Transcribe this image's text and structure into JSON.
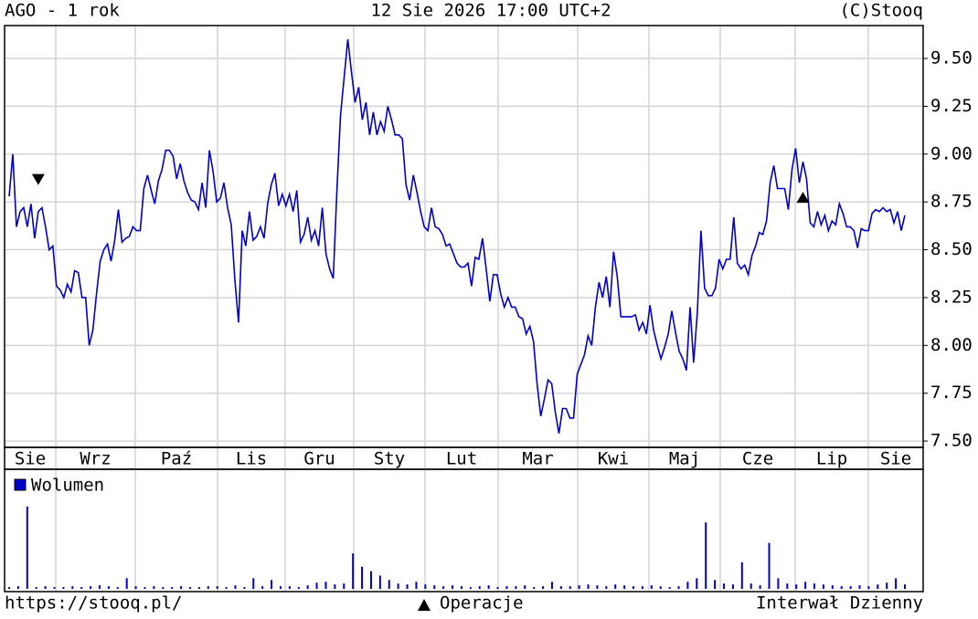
{
  "chart_data": [
    {
      "type": "line",
      "title": "AGO - 1 rok",
      "subtitle": "12 Sie 2026 17:00 UTC+2",
      "source": "(C)Stooq",
      "footer_left": "https://stooq.pl/",
      "operations_label": "Operacje",
      "footer_right": "Interwał Dzienny",
      "color": "#0000cc",
      "grid": true,
      "months": [
        "Sie",
        "Wrz",
        "Paź",
        "Lis",
        "Gru",
        "Sty",
        "Lut",
        "Mar",
        "Kwi",
        "Maj",
        "Cze",
        "Lip",
        "Sie"
      ],
      "ylim": [
        7.467,
        9.672
      ],
      "yticks": [
        {
          "value": 7.5,
          "label": "7.50"
        },
        {
          "value": 7.75,
          "label": "7.75"
        },
        {
          "value": 8,
          "label": "8.00"
        },
        {
          "value": 8.25,
          "label": "8.25"
        },
        {
          "value": 8.5,
          "label": "8.50"
        },
        {
          "value": 8.75,
          "label": "8.75"
        },
        {
          "value": 9,
          "label": "9.00"
        },
        {
          "value": 9.25,
          "label": "9.25"
        },
        {
          "value": 9.5,
          "label": "9.50"
        }
      ],
      "markers": [
        {
          "index": 8,
          "direction": "down"
        },
        {
          "index": 218,
          "direction": "up"
        }
      ],
      "values": [
        8.78,
        9.0,
        8.62,
        8.7,
        8.72,
        8.62,
        8.74,
        8.56,
        8.7,
        8.72,
        8.62,
        8.5,
        8.52,
        8.31,
        8.29,
        8.25,
        8.32,
        8.28,
        8.39,
        8.38,
        8.25,
        8.25,
        8.0,
        8.08,
        8.27,
        8.44,
        8.5,
        8.53,
        8.44,
        8.55,
        8.71,
        8.54,
        8.56,
        8.57,
        8.62,
        8.6,
        8.6,
        8.82,
        8.89,
        8.81,
        8.74,
        8.86,
        8.92,
        9.02,
        9.02,
        8.99,
        8.87,
        8.95,
        8.86,
        8.8,
        8.76,
        8.75,
        8.71,
        8.85,
        8.72,
        9.02,
        8.91,
        8.75,
        8.77,
        8.85,
        8.72,
        8.63,
        8.34,
        8.12,
        8.6,
        8.52,
        8.7,
        8.55,
        8.57,
        8.62,
        8.56,
        8.74,
        8.84,
        8.9,
        8.73,
        8.79,
        8.73,
        8.79,
        8.7,
        8.81,
        8.54,
        8.58,
        8.67,
        8.55,
        8.6,
        8.52,
        8.72,
        8.48,
        8.4,
        8.35,
        8.8,
        9.2,
        9.4,
        9.6,
        9.43,
        9.27,
        9.35,
        9.18,
        9.27,
        9.1,
        9.22,
        9.1,
        9.17,
        9.12,
        9.25,
        9.18,
        9.1,
        9.1,
        9.08,
        8.84,
        8.76,
        8.89,
        8.8,
        8.7,
        8.62,
        8.6,
        8.72,
        8.62,
        8.61,
        8.58,
        8.52,
        8.53,
        8.48,
        8.43,
        8.41,
        8.41,
        8.43,
        8.31,
        8.46,
        8.45,
        8.56,
        8.4,
        8.23,
        8.37,
        8.37,
        8.27,
        8.2,
        8.25,
        8.2,
        8.2,
        8.15,
        8.14,
        8.06,
        8.1,
        8.02,
        7.8,
        7.63,
        7.72,
        7.82,
        7.8,
        7.65,
        7.54,
        7.67,
        7.67,
        7.62,
        7.62,
        7.85,
        7.9,
        7.95,
        8.05,
        8.0,
        8.2,
        8.33,
        8.25,
        8.36,
        8.2,
        8.49,
        8.36,
        8.15,
        8.15,
        8.15,
        8.15,
        8.16,
        8.08,
        8.12,
        8.06,
        8.21,
        8.08,
        8.0,
        7.93,
        7.99,
        8.06,
        8.18,
        8.07,
        7.97,
        7.93,
        7.87,
        8.2,
        7.91,
        8.17,
        8.6,
        8.3,
        8.26,
        8.26,
        8.3,
        8.45,
        8.4,
        8.45,
        8.45,
        8.67,
        8.43,
        8.4,
        8.42,
        8.37,
        8.47,
        8.52,
        8.59,
        8.58,
        8.65,
        8.85,
        8.94,
        8.82,
        8.82,
        8.82,
        8.71,
        8.92,
        9.03,
        8.85,
        8.96,
        8.87,
        8.64,
        8.62,
        8.7,
        8.63,
        8.68,
        8.6,
        8.65,
        8.63,
        8.74,
        8.69,
        8.62,
        8.62,
        8.6,
        8.51,
        8.61,
        8.6,
        8.6,
        8.69,
        8.71,
        8.7,
        8.72,
        8.7,
        8.71,
        8.64,
        8.7,
        8.6,
        8.68
      ]
    },
    {
      "type": "bar",
      "ylim": [
        0,
        100
      ],
      "series": [
        {
          "name": "Wolumen",
          "color": "#0000cc",
          "values": [
            2,
            3,
            93,
            2,
            3,
            2,
            2,
            3,
            2,
            3,
            4,
            3,
            2,
            12,
            3,
            2,
            3,
            2,
            2,
            3,
            2,
            2,
            3,
            3,
            2,
            4,
            2,
            12,
            3,
            10,
            3,
            3,
            2,
            4,
            7,
            8,
            5,
            6,
            40,
            25,
            20,
            15,
            10,
            6,
            5,
            8,
            5,
            4,
            3,
            4,
            3,
            2,
            3,
            4,
            2,
            3,
            3,
            4,
            2,
            3,
            8,
            3,
            3,
            4,
            5,
            4,
            3,
            5,
            4,
            3,
            3,
            4,
            3,
            2,
            3,
            8,
            12,
            75,
            10,
            6,
            5,
            30,
            6,
            4,
            52,
            12,
            6,
            5,
            8,
            6,
            5,
            4,
            3,
            3,
            4,
            3,
            5,
            7,
            12,
            5
          ]
        }
      ]
    }
  ]
}
